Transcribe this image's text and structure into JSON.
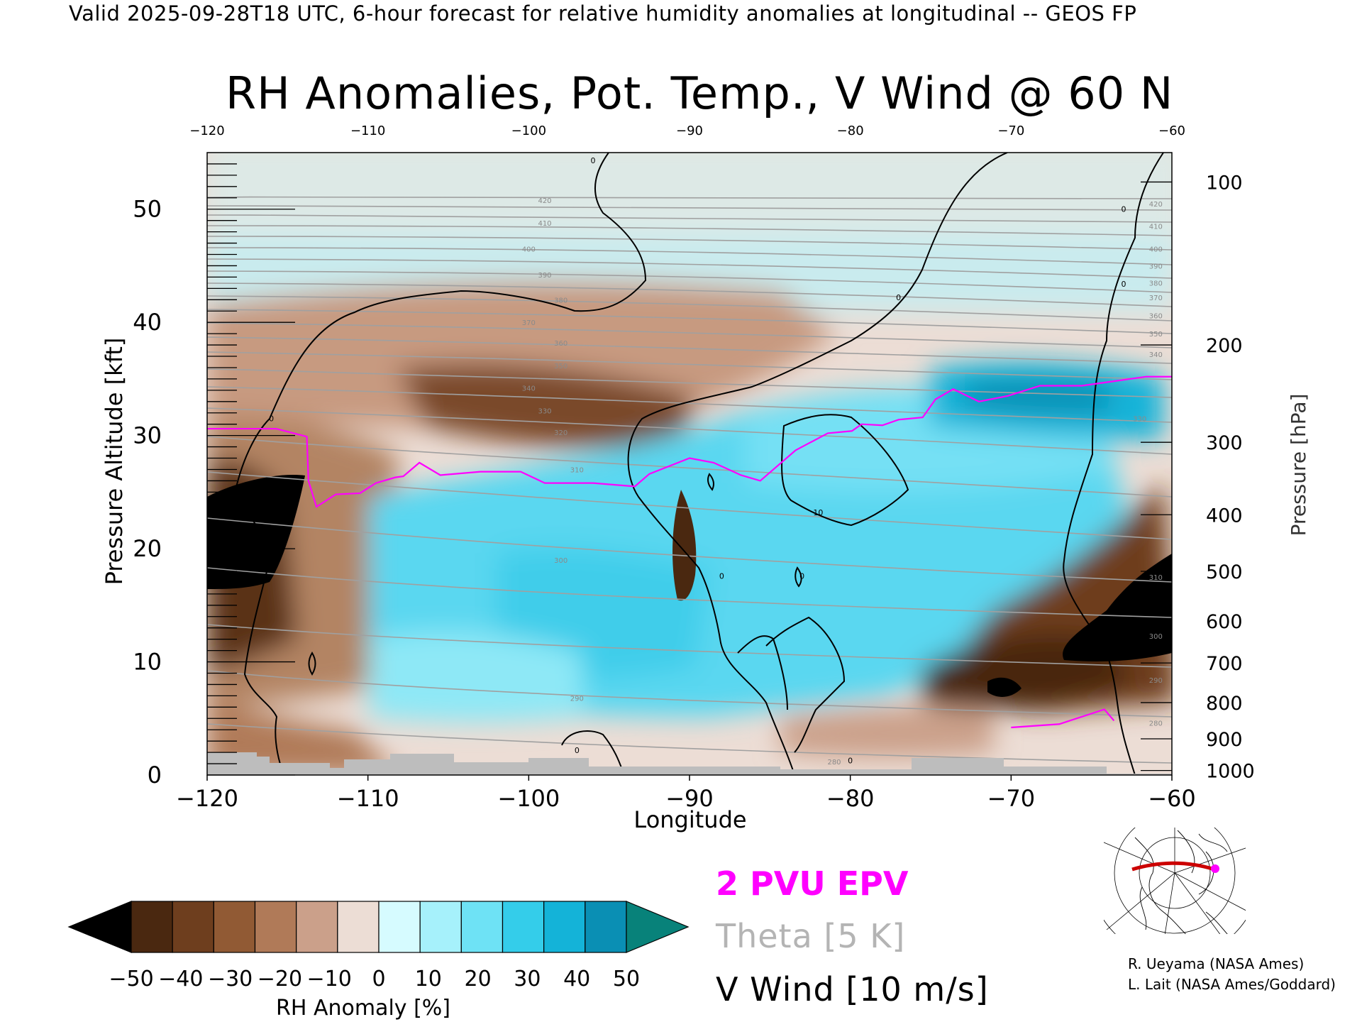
{
  "header_text": "Valid 2025-09-28T18 UTC, 6-hour forecast for relative humidity anomalies at longitudinal -- GEOS FP",
  "chart_data": {
    "type": "heatmap",
    "title": "RH Anomalies, Pot. Temp., V Wind @ 60 N",
    "xlabel": "Longitude",
    "ylabel_left": "Pressure Altitude [kft]",
    "ylabel_right": "Pressure [hPa]",
    "xlim": [
      -120,
      -60
    ],
    "ylim": [
      0,
      55
    ],
    "x_ticks": [
      "-120",
      "-110",
      "-100",
      "-90",
      "-80",
      "-70",
      "-60"
    ],
    "x_ticks_top": [
      "-120",
      "-110",
      "-100",
      "-90",
      "-80",
      "-70",
      "-60"
    ],
    "y_ticks": [
      {
        "value": 0,
        "label": "0"
      },
      {
        "value": 10,
        "label": "10"
      },
      {
        "value": 20,
        "label": "20"
      },
      {
        "value": 30,
        "label": "30"
      },
      {
        "value": 40,
        "label": "40"
      },
      {
        "value": 50,
        "label": "50"
      }
    ],
    "pressure_ticks": [
      {
        "kft": 52.4,
        "label": "100"
      },
      {
        "kft": 38.0,
        "label": "200"
      },
      {
        "kft": 29.4,
        "label": "300"
      },
      {
        "kft": 23.0,
        "label": "400"
      },
      {
        "kft": 18.0,
        "label": "500"
      },
      {
        "kft": 13.6,
        "label": "600"
      },
      {
        "kft": 9.9,
        "label": "700"
      },
      {
        "kft": 6.4,
        "label": "800"
      },
      {
        "kft": 3.2,
        "label": "900"
      },
      {
        "kft": 0.4,
        "label": "1000"
      }
    ],
    "theta_labels": [
      {
        "x": -99,
        "y": 50.8,
        "label": "420"
      },
      {
        "x": -99,
        "y": 48.8,
        "label": "410"
      },
      {
        "x": -100,
        "y": 46.5,
        "label": "400"
      },
      {
        "x": -99,
        "y": 44.2,
        "label": "390"
      },
      {
        "x": -98,
        "y": 42.0,
        "label": "380"
      },
      {
        "x": -100,
        "y": 40.0,
        "label": "370"
      },
      {
        "x": -98,
        "y": 38.2,
        "label": "360"
      },
      {
        "x": -98,
        "y": 36.2,
        "label": "350"
      },
      {
        "x": -100,
        "y": 34.2,
        "label": "340"
      },
      {
        "x": -99,
        "y": 32.2,
        "label": "330"
      },
      {
        "x": -98,
        "y": 30.3,
        "label": "320"
      },
      {
        "x": -97,
        "y": 27.0,
        "label": "310"
      },
      {
        "x": -98,
        "y": 19.0,
        "label": "300"
      },
      {
        "x": -97,
        "y": 6.8,
        "label": "290"
      },
      {
        "x": -81,
        "y": 1.2,
        "label": "280"
      },
      {
        "x": -61,
        "y": 50.5,
        "label": "420"
      },
      {
        "x": -61,
        "y": 48.5,
        "label": "410"
      },
      {
        "x": -61,
        "y": 46.5,
        "label": "400"
      },
      {
        "x": -61,
        "y": 45.0,
        "label": "390"
      },
      {
        "x": -61,
        "y": 43.5,
        "label": "380"
      },
      {
        "x": -61,
        "y": 42.2,
        "label": "370"
      },
      {
        "x": -61,
        "y": 40.6,
        "label": "360"
      },
      {
        "x": -61,
        "y": 39.0,
        "label": "350"
      },
      {
        "x": -61,
        "y": 37.2,
        "label": "340"
      },
      {
        "x": -62,
        "y": 31.5,
        "label": "330"
      },
      {
        "x": -61,
        "y": 17.5,
        "label": "310"
      },
      {
        "x": -61,
        "y": 12.3,
        "label": "300"
      },
      {
        "x": -61,
        "y": 8.4,
        "label": "290"
      },
      {
        "x": -61,
        "y": 4.6,
        "label": "280"
      }
    ],
    "vwind_labels": [
      {
        "x": -96,
        "y": 54.3,
        "label": "0"
      },
      {
        "x": -63,
        "y": 50.0,
        "label": "0"
      },
      {
        "x": -63,
        "y": 43.4,
        "label": "0"
      },
      {
        "x": -77,
        "y": 42.2,
        "label": "0"
      },
      {
        "x": -116,
        "y": 31.5,
        "label": "0"
      },
      {
        "x": -82,
        "y": 23.2,
        "label": "10"
      },
      {
        "x": -88,
        "y": 17.6,
        "label": "0"
      },
      {
        "x": -83,
        "y": 17.6,
        "label": "0"
      },
      {
        "x": -97,
        "y": 2.2,
        "label": "0"
      },
      {
        "x": -80,
        "y": 1.3,
        "label": "0"
      }
    ],
    "rh_anomaly_features": [
      {
        "x": -117,
        "y": 20,
        "value": -50
      },
      {
        "x": -62,
        "y": 13,
        "value": -50
      },
      {
        "x": -66,
        "y": 7,
        "value": -50
      },
      {
        "x": -95,
        "y": 30,
        "value": -35
      },
      {
        "x": -89.5,
        "y": 18,
        "value": -40
      },
      {
        "x": -92,
        "y": 14,
        "value": 25
      },
      {
        "x": -85,
        "y": 16,
        "value": 35
      },
      {
        "x": -78,
        "y": 30,
        "value": 30
      },
      {
        "x": -68,
        "y": 33,
        "value": 45
      },
      {
        "x": -90,
        "y": 50,
        "value": 0
      },
      {
        "x": -90,
        "y": 39,
        "value": -15
      }
    ],
    "epv_2pvu_line": [
      [
        -120,
        30.6
      ],
      [
        -115.7,
        30.6
      ],
      [
        -113.8,
        29.9
      ],
      [
        -113.7,
        26
      ],
      [
        -113.2,
        23.7
      ],
      [
        -112,
        24.8
      ],
      [
        -110.5,
        24.9
      ],
      [
        -109.5,
        25.8
      ],
      [
        -108.3,
        26.3
      ],
      [
        -107.8,
        26.4
      ],
      [
        -106.8,
        27.6
      ],
      [
        -105.5,
        26.5
      ],
      [
        -103,
        26.8
      ],
      [
        -100.5,
        26.8
      ],
      [
        -99,
        25.8
      ],
      [
        -96,
        25.8
      ],
      [
        -93.4,
        25.5
      ],
      [
        -92.5,
        26.6
      ],
      [
        -90,
        28
      ],
      [
        -88.5,
        27.6
      ],
      [
        -86.8,
        26.5
      ],
      [
        -85.6,
        26
      ],
      [
        -83.4,
        28.7
      ],
      [
        -81.4,
        30.2
      ],
      [
        -79.9,
        30.4
      ],
      [
        -79.3,
        31
      ],
      [
        -78,
        30.9
      ],
      [
        -77,
        31.4
      ],
      [
        -75.5,
        31.6
      ],
      [
        -74.7,
        33.2
      ],
      [
        -73.6,
        34.1
      ],
      [
        -72,
        33
      ],
      [
        -70.2,
        33.5
      ],
      [
        -68.2,
        34.4
      ],
      [
        -65.6,
        34.4
      ],
      [
        -63.6,
        34.8
      ],
      [
        -61.6,
        35.2
      ],
      [
        -60,
        35.2
      ]
    ],
    "epv_2pvu_low_line": [
      [
        -70,
        4.2
      ],
      [
        -67,
        4.5
      ],
      [
        -64.2,
        5.8
      ],
      [
        -63.6,
        4.8
      ]
    ],
    "colorbar": {
      "label": "RH Anomaly [%]",
      "tick_labels": [
        "-50",
        "-40",
        "-30",
        "-20",
        "-10",
        "0",
        "10",
        "20",
        "30",
        "40",
        "50"
      ],
      "colors": [
        "#000000",
        "#4a2810",
        "#6e3e1e",
        "#915a34",
        "#b07a58",
        "#cba08a",
        "#ecddd5",
        "#d6fbff",
        "#a6f1fb",
        "#6ee2f5",
        "#34cdea",
        "#14b3d8",
        "#0a8fb4",
        "#08827a"
      ]
    },
    "legend": [
      {
        "label": "2 PVU EPV",
        "color": "#ff00ff"
      },
      {
        "label": "Theta [5 K]",
        "color": "#b4b4b4"
      },
      {
        "label": "V Wind [10 m/s]",
        "color": "#000000"
      }
    ],
    "grid": false
  },
  "credits": [
    "R. Ueyama (NASA Ames)",
    "L. Lait (NASA Ames/Goddard)"
  ]
}
